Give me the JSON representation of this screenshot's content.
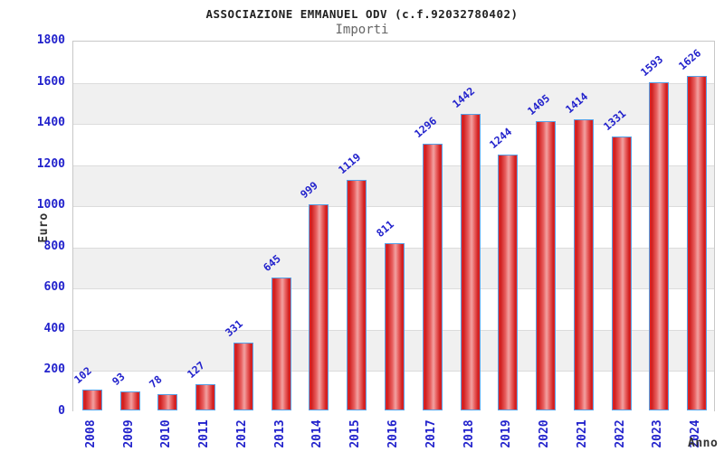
{
  "header": {
    "title": "ASSOCIAZIONE EMMANUEL ODV (c.f.92032780402)",
    "subtitle": "Importi"
  },
  "chart_data": {
    "type": "bar",
    "title": "ASSOCIAZIONE EMMANUEL ODV (c.f.92032780402)",
    "subtitle": "Importi",
    "xlabel": "Anno",
    "ylabel": "Euro",
    "categories": [
      "2008",
      "2009",
      "2010",
      "2011",
      "2012",
      "2013",
      "2014",
      "2015",
      "2016",
      "2017",
      "2018",
      "2019",
      "2020",
      "2021",
      "2022",
      "2023",
      "2024"
    ],
    "values": [
      102,
      93,
      78,
      127,
      331,
      645,
      999,
      1119,
      811,
      1296,
      1442,
      1244,
      1405,
      1414,
      1331,
      1593,
      1626
    ],
    "ylim": [
      0,
      1800
    ],
    "ytick_step": 200,
    "grid": "horizontal-bands",
    "legend": "none",
    "colors": {
      "bar_fill_edge": "#e82525",
      "bar_fill_center": "#f2a2a2",
      "bar_border": "#55a0e6",
      "label_blue": "#2222cc",
      "band_gray": "#f0f0f0",
      "band_white": "#ffffff",
      "plot_border": "#c8c8c8",
      "title_color": "#222222",
      "subtitle_color": "#666666",
      "axis_label_color": "#333333"
    }
  }
}
